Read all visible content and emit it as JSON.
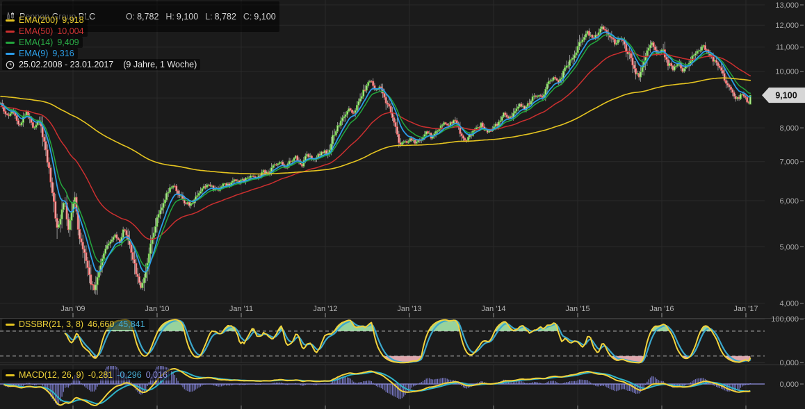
{
  "header": {
    "symbol": "Pennon Group PLC",
    "ohlc": {
      "o_label": "O:",
      "o_value": "8,782",
      "h_label": "H:",
      "h_value": "9,100",
      "l_label": "L:",
      "l_value": "8,782",
      "c_label": "C:",
      "c_value": "9,100"
    },
    "legend": [
      {
        "label": "EMA(200)",
        "value": "9,918",
        "color": "#e5c420"
      },
      {
        "label": "EMA(50)",
        "value": "10,004",
        "color": "#cb2f2f"
      },
      {
        "label": "EMA(14)",
        "value": "9,409",
        "color": "#23a63d"
      },
      {
        "label": "EMA(9)",
        "value": "9,316",
        "color": "#2b9ce8"
      }
    ],
    "date_range": "25.02.2008 - 23.01.2017",
    "duration": "(9 Jahre, 1 Woche)"
  },
  "price_tag": "9,100",
  "panels": {
    "dss": {
      "name": "DSSBR(21, 3, 8)",
      "v1": "46,660",
      "v2": "45,841"
    },
    "macd": {
      "name": "MACD(12, 26, 9)",
      "v1": "-0,281",
      "v2": "-0,296",
      "v3": "0,016"
    }
  },
  "chart_data": {
    "type": "candlestick",
    "title": "Pennon Group PLC",
    "interval": "1 Woche",
    "x_range": [
      "25.02.2008",
      "23.01.2017"
    ],
    "y_scale": "log",
    "last_price": 9100,
    "last_candle": {
      "open": 8782,
      "high": 9100,
      "low": 8782,
      "close": 9100
    },
    "y_axis": {
      "ticks": [
        13000,
        12000,
        11000,
        10000,
        9000,
        8000,
        7000,
        6000,
        5000,
        4000
      ],
      "labels": [
        "13,000",
        "12,000",
        "11,000",
        "10,000",
        "9,000",
        "8,000",
        "7,000",
        "6,000",
        "5,000",
        "4,000"
      ]
    },
    "x_axis": {
      "labels": [
        "Jan '09",
        "Jan '10",
        "Jan '11",
        "Jan '12",
        "Jan '13",
        "Jan '14",
        "Jan '15",
        "Jan '16",
        "Jan '17"
      ],
      "years": [
        2009,
        2010,
        2011,
        2012,
        2013,
        2014,
        2015,
        2016,
        2017
      ]
    },
    "sub_axis": {
      "dss_labels": [
        "100,000",
        "0,000"
      ],
      "macd_label": "0,000"
    },
    "series_overlays": [
      {
        "name": "EMA(200)",
        "last": 9918,
        "color": "#e5c420"
      },
      {
        "name": "EMA(50)",
        "last": 10004,
        "color": "#cb2f2f"
      },
      {
        "name": "EMA(14)",
        "last": 9409,
        "color": "#23a63d"
      },
      {
        "name": "EMA(9)",
        "last": 9316,
        "color": "#2b9ce8"
      }
    ],
    "indicators": [
      {
        "name": "DSSBR",
        "params": [
          21,
          3,
          8
        ],
        "last_values": [
          46.66,
          45.841
        ],
        "range": [
          0,
          100
        ]
      },
      {
        "name": "MACD",
        "params": [
          12,
          26,
          9
        ],
        "last_values": [
          -0.281,
          -0.296,
          0.016
        ]
      }
    ],
    "dss_bands": {
      "upper": 72,
      "lower": 16
    },
    "ema_seeds": {
      "ema200": 9060,
      "ema50": 8700,
      "ema14": 8780,
      "ema9": 8790
    },
    "price_path": [
      [
        0,
        8800
      ],
      [
        10,
        8350
      ],
      [
        18,
        8600
      ],
      [
        28,
        8100
      ],
      [
        38,
        8500
      ],
      [
        48,
        8000
      ],
      [
        56,
        8300
      ],
      [
        64,
        7500
      ],
      [
        70,
        6900
      ],
      [
        76,
        6100
      ],
      [
        82,
        5400
      ],
      [
        88,
        5650
      ],
      [
        93,
        6050
      ],
      [
        98,
        5350
      ],
      [
        104,
        5900
      ],
      [
        108,
        6100
      ],
      [
        112,
        5400
      ],
      [
        118,
        4950
      ],
      [
        124,
        4750
      ],
      [
        130,
        4350
      ],
      [
        136,
        4200
      ],
      [
        142,
        4550
      ],
      [
        148,
        4850
      ],
      [
        154,
        5000
      ],
      [
        160,
        5100
      ],
      [
        166,
        5250
      ],
      [
        172,
        5050
      ],
      [
        178,
        5350
      ],
      [
        184,
        5150
      ],
      [
        190,
        4850
      ],
      [
        196,
        4500
      ],
      [
        202,
        4250
      ],
      [
        208,
        4450
      ],
      [
        214,
        4850
      ],
      [
        220,
        5250
      ],
      [
        226,
        5600
      ],
      [
        234,
        5900
      ],
      [
        242,
        6250
      ],
      [
        250,
        6350
      ],
      [
        258,
        6150
      ],
      [
        266,
        5950
      ],
      [
        274,
        5900
      ],
      [
        282,
        6100
      ],
      [
        290,
        6300
      ],
      [
        298,
        6400
      ],
      [
        306,
        6300
      ],
      [
        314,
        6250
      ],
      [
        322,
        6450
      ],
      [
        330,
        6350
      ],
      [
        338,
        6550
      ],
      [
        346,
        6450
      ],
      [
        354,
        6550
      ],
      [
        362,
        6650
      ],
      [
        370,
        6550
      ],
      [
        378,
        6750
      ],
      [
        386,
        6650
      ],
      [
        394,
        6900
      ],
      [
        402,
        7000
      ],
      [
        410,
        6850
      ],
      [
        418,
        7000
      ],
      [
        426,
        7120
      ],
      [
        434,
        6900
      ],
      [
        442,
        7200
      ],
      [
        450,
        7050
      ],
      [
        458,
        7200
      ],
      [
        466,
        7300
      ],
      [
        472,
        7200
      ],
      [
        478,
        7700
      ],
      [
        486,
        8050
      ],
      [
        494,
        8300
      ],
      [
        502,
        8600
      ],
      [
        510,
        8450
      ],
      [
        518,
        9000
      ],
      [
        526,
        9400
      ],
      [
        533,
        9650
      ],
      [
        540,
        9300
      ],
      [
        547,
        9450
      ],
      [
        554,
        8950
      ],
      [
        561,
        8600
      ],
      [
        568,
        8100
      ],
      [
        575,
        7450
      ],
      [
        582,
        7550
      ],
      [
        590,
        7650
      ],
      [
        598,
        7500
      ],
      [
        606,
        7650
      ],
      [
        614,
        7850
      ],
      [
        622,
        7700
      ],
      [
        630,
        7950
      ],
      [
        638,
        8150
      ],
      [
        646,
        8050
      ],
      [
        653,
        8300
      ],
      [
        660,
        7950
      ],
      [
        668,
        7600
      ],
      [
        676,
        7750
      ],
      [
        684,
        7950
      ],
      [
        692,
        8100
      ],
      [
        700,
        7900
      ],
      [
        708,
        7950
      ],
      [
        716,
        8150
      ],
      [
        724,
        8450
      ],
      [
        732,
        8250
      ],
      [
        740,
        8550
      ],
      [
        748,
        8800
      ],
      [
        756,
        8600
      ],
      [
        764,
        8950
      ],
      [
        772,
        9150
      ],
      [
        780,
        9000
      ],
      [
        788,
        9500
      ],
      [
        796,
        9700
      ],
      [
        804,
        9550
      ],
      [
        812,
        10050
      ],
      [
        820,
        10400
      ],
      [
        828,
        10750
      ],
      [
        836,
        11300
      ],
      [
        844,
        11700
      ],
      [
        852,
        11350
      ],
      [
        860,
        11650
      ],
      [
        868,
        11900
      ],
      [
        876,
        11600
      ],
      [
        884,
        11150
      ],
      [
        892,
        11450
      ],
      [
        900,
        10950
      ],
      [
        908,
        10500
      ],
      [
        914,
        9950
      ],
      [
        920,
        9750
      ],
      [
        926,
        10300
      ],
      [
        932,
        10850
      ],
      [
        938,
        11300
      ],
      [
        944,
        10650
      ],
      [
        952,
        10950
      ],
      [
        960,
        10350
      ],
      [
        968,
        10100
      ],
      [
        976,
        10400
      ],
      [
        982,
        10000
      ],
      [
        990,
        10300
      ],
      [
        998,
        10700
      ],
      [
        1006,
        10850
      ],
      [
        1012,
        11050
      ],
      [
        1020,
        10700
      ],
      [
        1028,
        10400
      ],
      [
        1036,
        10150
      ],
      [
        1044,
        9550
      ],
      [
        1052,
        9300
      ],
      [
        1060,
        8950
      ],
      [
        1068,
        9150
      ],
      [
        1076,
        8850
      ],
      [
        1085,
        9100
      ]
    ]
  }
}
